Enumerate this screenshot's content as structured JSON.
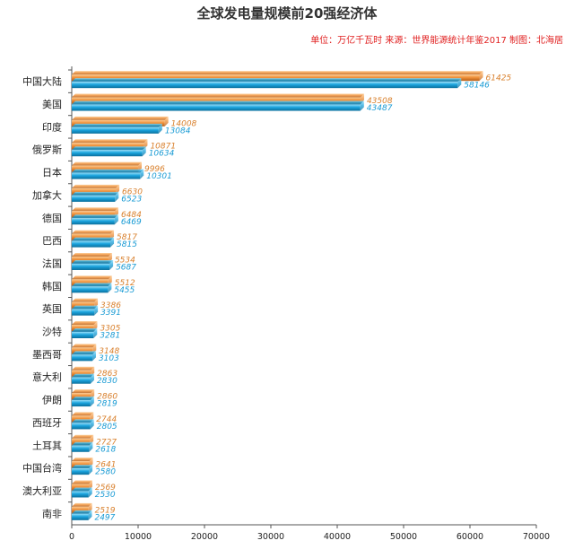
{
  "chart_data": {
    "type": "bar",
    "orientation": "horizontal",
    "title": "全球发电量规模前20强经济体",
    "subtitle": "单位：万亿千瓦时 来源：世界能源统计年鉴2017 制图：北海居",
    "categories": [
      "中国大陆",
      "美国",
      "印度",
      "俄罗斯",
      "日本",
      "加拿大",
      "德国",
      "巴西",
      "法国",
      "韩国",
      "英国",
      "沙特",
      "墨西哥",
      "意大利",
      "伊朗",
      "西班牙",
      "土耳其",
      "中国台湾",
      "澳大利亚",
      "南非"
    ],
    "series": [
      {
        "color": "#f0913a",
        "values": [
          61425,
          43508,
          14008,
          10871,
          9996,
          6630,
          6484,
          5817,
          5534,
          5512,
          3386,
          3305,
          3148,
          2863,
          2860,
          2744,
          2727,
          2641,
          2569,
          2519
        ]
      },
      {
        "color": "#1aa3dd",
        "values": [
          58146,
          43487,
          13084,
          10634,
          10301,
          6523,
          6469,
          5815,
          5687,
          5455,
          3391,
          3281,
          3103,
          2830,
          2819,
          2805,
          2618,
          2580,
          2530,
          2497
        ]
      }
    ],
    "xlim": [
      0,
      70000
    ],
    "xticks": [
      "0",
      "10000",
      "20000",
      "30000",
      "40000",
      "50000",
      "60000",
      "70000"
    ],
    "grid": false,
    "legend": "none"
  }
}
